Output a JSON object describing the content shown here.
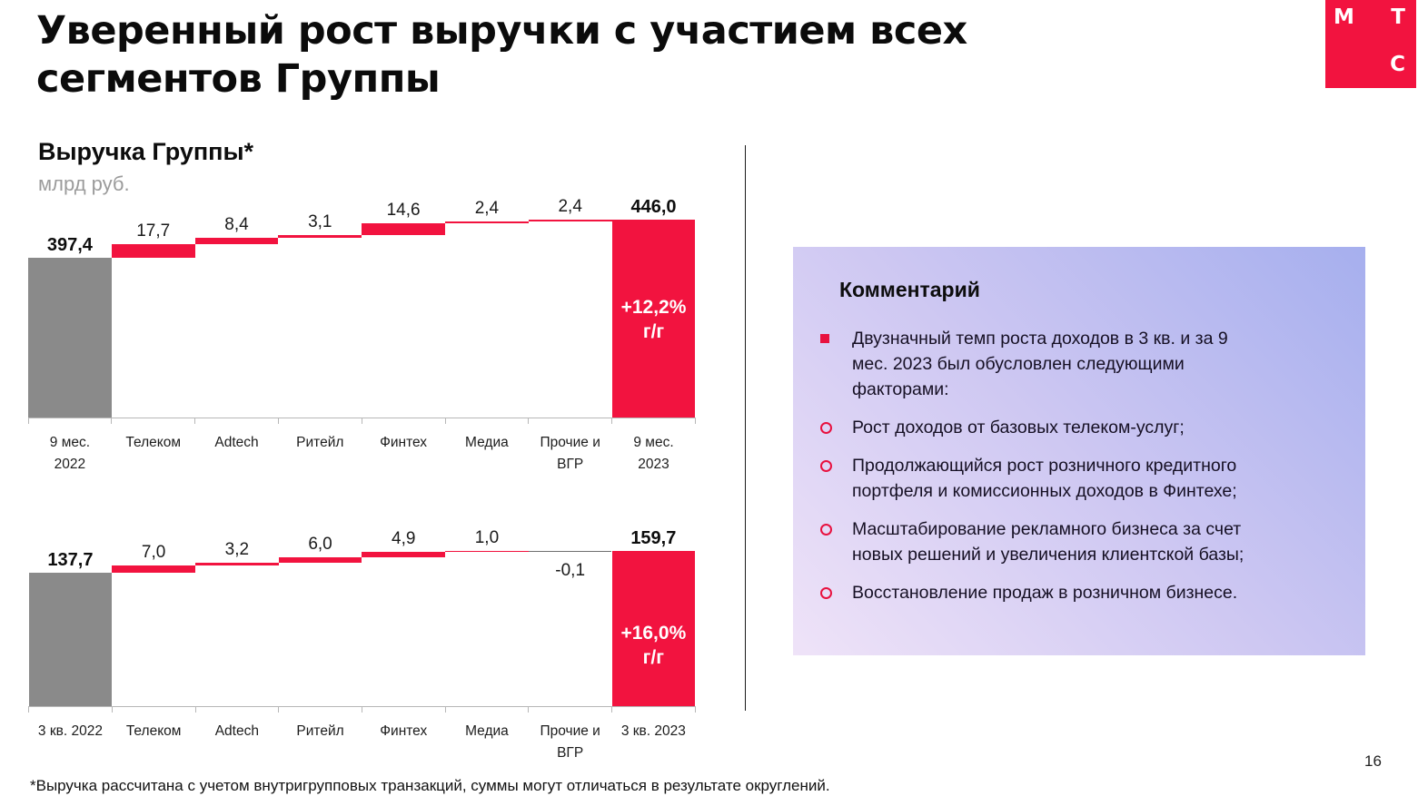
{
  "slide": {
    "title": "Уверенный рост выручки с участием всех\nсегментов Группы",
    "page_number": "16",
    "footnote": "*Выручка рассчитана с учетом внутригрупповых транзакций, суммы могут отличаться в результате округлений.",
    "logo_letters": {
      "m": "М",
      "t": "Т",
      "s": "С"
    }
  },
  "chart_header": {
    "title": "Выручка Группы*",
    "unit": "млрд руб."
  },
  "colors": {
    "accent_red": "#F2133F",
    "base_gray": "#8A8A8A",
    "negative_line_gray": "#6f6f6f",
    "axis_gray": "#B7B7B7",
    "panel_gradient_start": "#EFE3F8",
    "panel_gradient_mid": "#CDC7F2",
    "panel_gradient_end": "#A6AFEE",
    "marker_red": "#E8113F"
  },
  "chart_data": [
    {
      "type": "bar",
      "subtype": "waterfall",
      "title": "Выручка Группы, 9 месяцев, млрд руб.",
      "categories": [
        "9 мес.\n2022",
        "Телеком",
        "Adtech",
        "Ритейл",
        "Финтех",
        "Медиа",
        "Прочие и\nВГР",
        "9 мес.\n2023"
      ],
      "values": [
        397.4,
        17.7,
        8.4,
        3.1,
        14.6,
        2.4,
        2.4,
        446.0
      ],
      "value_labels": [
        "397,4",
        "17,7",
        "8,4",
        "3,1",
        "14,6",
        "2,4",
        "2,4",
        "446,0"
      ],
      "roles": [
        "base",
        "step",
        "step",
        "step",
        "step",
        "step",
        "step",
        "total"
      ],
      "growth_annotation": "+12,2%\nг/г",
      "ylim": [
        190,
        450
      ],
      "grid": false,
      "legend": false
    },
    {
      "type": "bar",
      "subtype": "waterfall",
      "title": "Выручка Группы, 3 квартал, млрд руб.",
      "categories": [
        "3 кв. 2022",
        "Телеком",
        "Adtech",
        "Ритейл",
        "Финтех",
        "Медиа",
        "Прочие и\nВГР",
        "3 кв. 2023"
      ],
      "values": [
        137.7,
        7.0,
        3.2,
        6.0,
        4.9,
        1.0,
        -0.1,
        159.7
      ],
      "value_labels": [
        "137,7",
        "7,0",
        "3,2",
        "6,0",
        "4,9",
        "1,0",
        "-0,1",
        "159,7"
      ],
      "roles": [
        "base",
        "step",
        "step",
        "step",
        "step",
        "step",
        "step",
        "total"
      ],
      "growth_annotation": "+16,0%\nг/г",
      "ylim": [
        0,
        160
      ],
      "grid": false,
      "legend": false
    }
  ],
  "comment_panel": {
    "title": "Комментарий",
    "bullets": [
      {
        "marker": "square",
        "text": "Двузначный темп роста доходов в 3 кв. и за 9\nмес. 2023 был обусловлен следующими\nфакторами:"
      },
      {
        "marker": "circle",
        "text": "Рост доходов от базовых телеком-услуг;"
      },
      {
        "marker": "circle",
        "text": "Продолжающийся рост розничного кредитного\nпортфеля и комиссионных доходов в Финтехе;"
      },
      {
        "marker": "circle",
        "text": "Масштабирование рекламного бизнеса за счет\nновых решений и увеличения клиентской базы;"
      },
      {
        "marker": "circle",
        "text": "Восстановление продаж в розничном бизнесе."
      }
    ]
  }
}
